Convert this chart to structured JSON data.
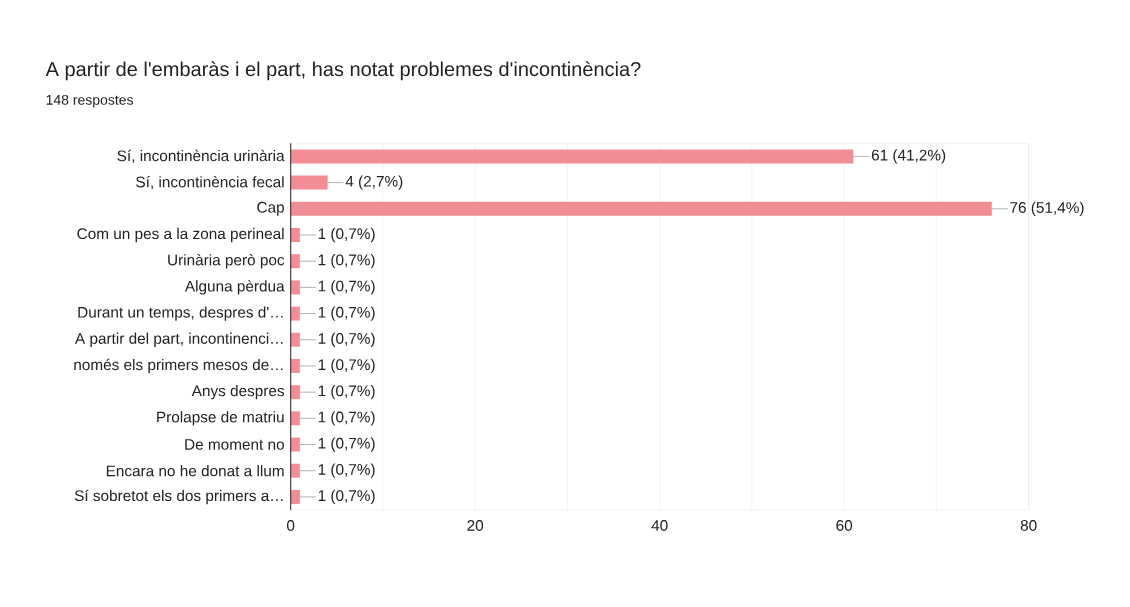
{
  "chart_data": {
    "type": "bar",
    "orientation": "horizontal",
    "title": "A partir de l'embaràs i el part, has notat problemes d'incontinència?",
    "subtitle": "148 respostes",
    "categories": [
      "Sí, incontinència urinària",
      "Sí, incontinència fecal",
      "Cap",
      "Com un pes a la zona perineal",
      "Urinària però poc",
      "Alguna pèrdua",
      "Durant un temps, despres d'…",
      "A partir del part, incontinenci…",
      "només els primers mesos de…",
      "Anys despres",
      "Prolapse de matriu",
      "De moment no",
      "Encara no he donat a llum",
      "Sí sobretot els dos primers a…"
    ],
    "values": [
      61,
      4,
      76,
      1,
      1,
      1,
      1,
      1,
      1,
      1,
      1,
      1,
      1,
      1
    ],
    "value_labels": [
      "61 (41,2%)",
      "4 (2,7%)",
      "76 (51,4%)",
      "1 (0,7%)",
      "1 (0,7%)",
      "1 (0,7%)",
      "1 (0,7%)",
      "1 (0,7%)",
      "1 (0,7%)",
      "1 (0,7%)",
      "1 (0,7%)",
      "1 (0,7%)",
      "1 (0,7%)",
      "1 (0,7%)"
    ],
    "color": "#f08d95",
    "xlim": [
      0,
      80
    ],
    "xticks": [
      0,
      {
        "value": 10,
        "label": null
      },
      20,
      {
        "value": 30,
        "label": null
      },
      40,
      {
        "value": 50,
        "label": null
      },
      60,
      {
        "value": 70,
        "label": null
      },
      80
    ],
    "grid": "x"
  }
}
